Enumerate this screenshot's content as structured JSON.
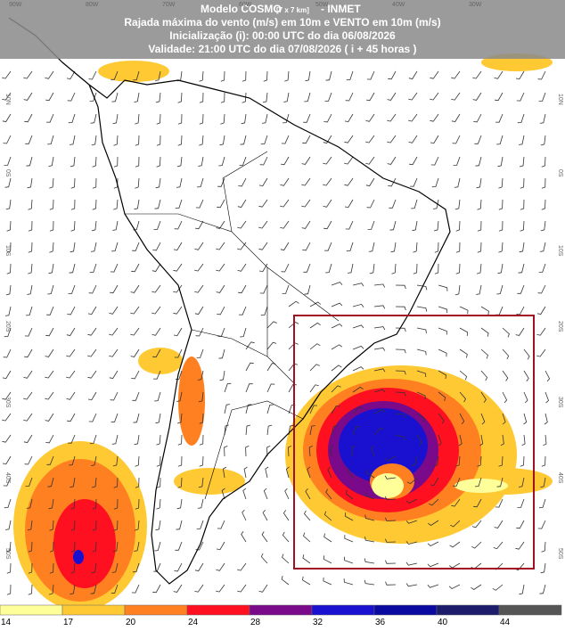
{
  "header": {
    "model": "Modelo COSMO",
    "resolution": "[7 x 7 km]",
    "source": "- INMET",
    "variable": "Rajada máxima do vento (m/s) em 10m e VENTO em 10m (m/s)",
    "init": "Inicialização (i): 00:00 UTC do dia 06/08/2026",
    "valid": "Validade: 21:00 UTC do dia 07/08/2026 ( i + 45 horas )"
  },
  "longitudes": [
    "90W",
    "80W",
    "70W",
    "60W",
    "50W",
    "40W",
    "30W"
  ],
  "latitudes": [
    "10N",
    "0S",
    "10S",
    "20S",
    "30S",
    "40S",
    "50S"
  ],
  "colorbar": {
    "labels": [
      "14",
      "17",
      "20",
      "24",
      "28",
      "32",
      "36",
      "40",
      "44"
    ],
    "colors": [
      "#ffff99",
      "#ffc933",
      "#ff8020",
      "#ff1020",
      "#7a0a8a",
      "#1a10d0",
      "#0a0aa0",
      "#1c1c6a",
      "#555555"
    ]
  }
}
